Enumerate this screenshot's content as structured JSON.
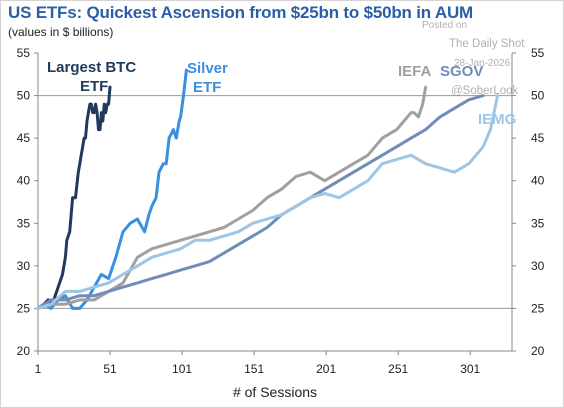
{
  "title": "US ETFs: Quickest Ascension from $25bn to $50bn in AUM",
  "subtitle": "(values in $ billions)",
  "watermark": {
    "posted_on": "Posted on",
    "source": "The Daily Shot",
    "date": "28-Jan-2026",
    "handle": "@SoberLook"
  },
  "chart_data": {
    "type": "line",
    "title": "US ETFs: Quickest Ascension from $25bn to $50bn in AUM",
    "subtitle": "(values in $ billions)",
    "xlabel": "# of Sessions",
    "ylabel": "",
    "xlim": [
      1,
      330
    ],
    "ylim": [
      20,
      55
    ],
    "xticks": [
      1,
      51,
      101,
      151,
      201,
      251,
      301
    ],
    "yticks": [
      20,
      25,
      30,
      35,
      40,
      45,
      50,
      55
    ],
    "reference_lines": [
      25,
      50
    ],
    "grid": false,
    "series": [
      {
        "name": "Largest BTC ETF",
        "label_lines": [
          "Largest BTC",
          "ETF"
        ],
        "color": "#1f3a5c",
        "x": [
          1,
          5,
          8,
          10,
          12,
          14,
          16,
          18,
          20,
          21,
          23,
          25,
          27,
          29,
          30,
          31,
          32,
          33,
          34,
          35,
          36,
          37,
          38,
          39,
          40,
          41,
          42,
          43,
          44,
          45,
          46,
          47,
          48,
          49,
          50,
          51
        ],
        "y": [
          25,
          25.5,
          26,
          25.5,
          26,
          27,
          28,
          29,
          31,
          33,
          34,
          38,
          38,
          41,
          42,
          43,
          44,
          45,
          45,
          47,
          48,
          49,
          49,
          48,
          48,
          49,
          48,
          46,
          46,
          48,
          47,
          49,
          48,
          49,
          49,
          51
        ]
      },
      {
        "name": "Silver ETF",
        "label_lines": [
          "Silver",
          "ETF"
        ],
        "color": "#3b8fe0",
        "x": [
          1,
          5,
          10,
          15,
          20,
          25,
          30,
          35,
          40,
          45,
          50,
          55,
          60,
          65,
          70,
          75,
          78,
          80,
          83,
          85,
          88,
          90,
          92,
          95,
          97,
          99,
          100,
          102,
          104
        ],
        "y": [
          25,
          25.5,
          25,
          26,
          26.5,
          25,
          25,
          26,
          27.5,
          29,
          28.5,
          31,
          34,
          35,
          35.5,
          34,
          36,
          37,
          38,
          41,
          42,
          42,
          45,
          46,
          45,
          47,
          47.5,
          50,
          53
        ]
      },
      {
        "name": "IEFA",
        "color": "#a0a0a0",
        "x": [
          1,
          10,
          20,
          30,
          40,
          50,
          60,
          70,
          80,
          90,
          100,
          110,
          120,
          130,
          140,
          150,
          160,
          170,
          180,
          190,
          200,
          210,
          220,
          230,
          240,
          250,
          255,
          260,
          262,
          265,
          268,
          270
        ],
        "y": [
          25,
          25.5,
          25.5,
          26,
          26,
          27,
          28,
          31,
          32,
          32.5,
          33,
          33.5,
          34,
          34.5,
          35.5,
          36.5,
          38,
          39,
          40.5,
          41,
          40,
          41,
          42,
          43,
          45,
          46,
          47,
          48,
          48,
          47.5,
          49,
          51
        ]
      },
      {
        "name": "SGOV",
        "color": "#6f8db8",
        "x": [
          1,
          10,
          20,
          30,
          40,
          50,
          60,
          70,
          80,
          90,
          100,
          110,
          120,
          130,
          140,
          150,
          160,
          170,
          180,
          190,
          200,
          210,
          220,
          230,
          240,
          250,
          260,
          270,
          280,
          290,
          300,
          310
        ],
        "y": [
          25,
          26,
          26,
          26.5,
          26.5,
          27,
          27.5,
          28,
          28.5,
          29,
          29.5,
          30,
          30.5,
          31.5,
          32.5,
          33.5,
          34.5,
          36,
          37,
          38,
          39,
          40,
          41,
          42,
          43,
          44,
          45,
          46,
          47.5,
          48.5,
          49.5,
          50
        ]
      },
      {
        "name": "IEMG",
        "color": "#9ec6e4",
        "x": [
          1,
          10,
          20,
          30,
          40,
          50,
          60,
          70,
          80,
          90,
          100,
          110,
          120,
          130,
          140,
          150,
          160,
          170,
          180,
          190,
          200,
          210,
          220,
          230,
          240,
          250,
          260,
          270,
          280,
          290,
          300,
          310,
          315,
          320
        ],
        "y": [
          25,
          25.5,
          27,
          27,
          27.5,
          28,
          29,
          30,
          31,
          31.5,
          32,
          33,
          33,
          33.5,
          34,
          35,
          35.5,
          36,
          37,
          38,
          38.5,
          38,
          39,
          40,
          42,
          42.5,
          43,
          42,
          41.5,
          41,
          42,
          44,
          46,
          50
        ]
      }
    ]
  }
}
